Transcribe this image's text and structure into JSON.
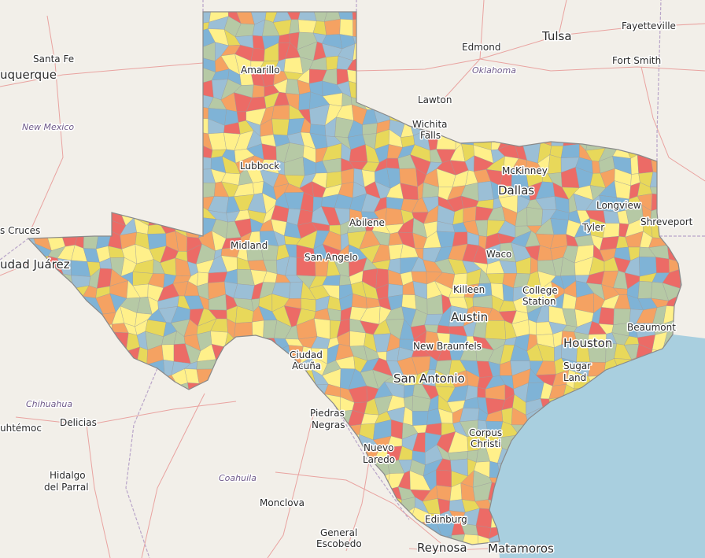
{
  "map": {
    "colors": {
      "land": "#f2efe9",
      "water": "#a9cfdf",
      "road": "#e9a3a0",
      "border": "#b9a5c9",
      "texas_outline": "#8a8a8a",
      "choropleth": [
        "#e8d85a",
        "#7fb3d6",
        "#f5a262",
        "#b6c9a5",
        "#ec6b66",
        "#fff08a",
        "#9bbfd6"
      ]
    },
    "labels": {
      "santa_fe": "Santa Fe",
      "albuquerque": "uquerque",
      "new_mexico": "New Mexico",
      "las_cruces": "s Cruces",
      "ciudad_juarez": "udad Juárez",
      "amarillo": "Amarillo",
      "lubbock": "Lubbock",
      "midland": "Midland",
      "abilene": "Abilene",
      "san_angelo": "San Angelo",
      "wichita_falls_1": "Wichita",
      "wichita_falls_2": "Falls",
      "lawton": "Lawton",
      "edmond": "Edmond",
      "oklahoma": "Oklahoma",
      "tulsa": "Tulsa",
      "fayetteville": "Fayetteville",
      "fort_smith": "Fort Smith",
      "mckinney": "McKinney",
      "dallas": "Dallas",
      "longview": "Longview",
      "tyler": "Tyler",
      "shreveport": "Shreveport",
      "waco": "Waco",
      "killeen": "Killeen",
      "college_station_1": "College",
      "college_station_2": "Station",
      "austin": "Austin",
      "new_braunfels": "New Braunfels",
      "san_antonio": "San Antonio",
      "houston": "Houston",
      "sugar_land_1": "Sugar",
      "sugar_land_2": "Land",
      "beaumont": "Beaumont",
      "ciudad_acuna_1": "Ciudad",
      "ciudad_acuna_2": "Acuña",
      "piedras_negras_1": "Piedras",
      "piedras_negras_2": "Negras",
      "chihuahua": "Chihuahua",
      "cuauhtemoc": "uhtémoc",
      "delicias": "Delicias",
      "hidalgo_del_parral_1": "Hidalgo",
      "hidalgo_del_parral_2": "del Parral",
      "coahuila": "Coahuila",
      "monclova": "Monclova",
      "nuevo_laredo_1": "Nuevo",
      "nuevo_laredo_2": "Laredo",
      "corpus_christi_1": "Corpus",
      "corpus_christi_2": "Christi",
      "general_escobedo_1": "General",
      "general_escobedo_2": "Escobedo",
      "edinburg": "Edinburg",
      "reynosa": "Reynosa",
      "matamoros": "Matamoros"
    }
  }
}
